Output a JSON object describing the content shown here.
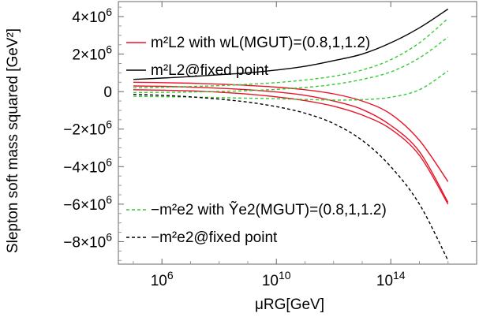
{
  "chart_data": {
    "type": "line",
    "xlabel": "μRG[GeV]",
    "ylabel": "Slepton soft mass squared [GeV²]",
    "x_scale": "log",
    "xlim": [
      30000,
      1e+17
    ],
    "ylim": [
      -9200000,
      4800000
    ],
    "grid": false,
    "legend_placement": "in-plot",
    "x_tick_labels": [
      "10^6",
      "10^10",
      "10^14"
    ],
    "x_tick_values": [
      1000000.0,
      10000000000.0,
      100000000000000.0
    ],
    "y_tick_labels": [
      "4×10^6",
      "2×10^6",
      "0",
      "−2×10^6",
      "−4×10^6",
      "−6×10^6",
      "−8×10^6"
    ],
    "y_tick_values": [
      4000000,
      2000000,
      0,
      -2000000,
      -4000000,
      -6000000,
      -8000000
    ],
    "legend": [
      {
        "label": "m²L2 with wL(MGUT)=(0.8,1,1.2)",
        "color": "#e8142a",
        "dashed": false
      },
      {
        "label": "m²L2@fixed point",
        "color": "#000000",
        "dashed": false
      },
      {
        "label": "−m²e2 with Ỹe2(MGUT)=(0.8,1,1.2)",
        "color": "#33cc33",
        "dashed": true
      },
      {
        "label": "−m²e2@fixed point",
        "color": "#000000",
        "dashed": true
      }
    ],
    "series": [
      {
        "color": "#000000",
        "dashed": false,
        "x": [
          100000.0,
          1000000.0,
          10000000.0,
          100000000.0,
          1000000000.0,
          10000000000.0,
          100000000000.0,
          1000000000000.0,
          10000000000000.0,
          100000000000000.0,
          1000000000000000.0,
          1e+16
        ],
        "y": [
          650000,
          720000,
          800000,
          900000,
          1000000,
          1150000,
          1350000,
          1650000,
          2000000,
          2600000,
          3400000,
          4400000
        ]
      },
      {
        "color": "#e8142a",
        "dashed": false,
        "x": [
          100000.0,
          1000000.0,
          10000000.0,
          100000000.0,
          1000000000.0,
          10000000000.0,
          100000000000.0,
          1000000000000.0,
          10000000000000.0,
          100000000000000.0,
          1000000000000000.0,
          1e+16
        ],
        "y": [
          500000,
          480000,
          450000,
          400000,
          330000,
          240000,
          100000,
          -120000,
          -500000,
          -1200000,
          -2600000,
          -4800000
        ]
      },
      {
        "color": "#e8142a",
        "dashed": false,
        "x": [
          100000.0,
          1000000.0,
          10000000.0,
          100000000.0,
          1000000000.0,
          10000000000.0,
          100000000000.0,
          1000000000000.0,
          10000000000000.0,
          100000000000000.0,
          1000000000000000.0,
          1e+16
        ],
        "y": [
          300000,
          280000,
          240000,
          180000,
          100000,
          -20000,
          -200000,
          -500000,
          -950000,
          -1800000,
          -3200000,
          -5900000
        ]
      },
      {
        "color": "#e8142a",
        "dashed": false,
        "x": [
          100000.0,
          1000000.0,
          10000000.0,
          100000000.0,
          1000000000.0,
          10000000000.0,
          100000000000.0,
          1000000000000.0,
          10000000000000.0,
          100000000000000.0,
          1000000000000000.0,
          1e+16
        ],
        "y": [
          100000,
          80000,
          40000,
          -30000,
          -130000,
          -280000,
          -480000,
          -780000,
          -1250000,
          -2000000,
          -3400000,
          -6000000
        ]
      },
      {
        "color": "#33cc33",
        "dashed": true,
        "x": [
          100000.0,
          1000000.0,
          10000000.0,
          100000000.0,
          1000000000.0,
          10000000000.0,
          100000000000.0,
          1000000000000.0,
          10000000000000.0,
          100000000000000.0,
          1000000000000000.0,
          1e+16
        ],
        "y": [
          200000,
          230000,
          270000,
          320000,
          390000,
          480000,
          620000,
          820000,
          1150000,
          1700000,
          2600000,
          3900000
        ]
      },
      {
        "color": "#33cc33",
        "dashed": true,
        "x": [
          100000.0,
          1000000.0,
          10000000.0,
          100000000.0,
          1000000000.0,
          10000000000.0,
          100000000000.0,
          1000000000000.0,
          10000000000000.0,
          100000000000000.0,
          1000000000000000.0,
          1e+16
        ],
        "y": [
          -50000,
          -40000,
          -20000,
          10000,
          50000,
          120000,
          220000,
          380000,
          650000,
          1050000,
          1800000,
          2900000
        ]
      },
      {
        "color": "#33cc33",
        "dashed": true,
        "x": [
          100000.0,
          1000000.0,
          10000000.0,
          100000000.0,
          1000000000.0,
          10000000000.0,
          100000000000.0,
          1000000000000.0,
          10000000000000.0,
          100000000000000.0,
          1000000000000000.0,
          1e+16
        ],
        "y": [
          -250000,
          -270000,
          -290000,
          -320000,
          -350000,
          -380000,
          -420000,
          -450000,
          -430000,
          -300000,
          100000,
          1100000
        ]
      },
      {
        "color": "#000000",
        "dashed": true,
        "x": [
          100000.0,
          1000000.0,
          10000000.0,
          100000000.0,
          1000000000.0,
          10000000000.0,
          100000000000.0,
          1000000000000.0,
          10000000000000.0,
          100000000000000.0,
          1000000000000000.0,
          1e+16
        ],
        "y": [
          -150000,
          -200000,
          -280000,
          -400000,
          -560000,
          -800000,
          -1150000,
          -1700000,
          -2600000,
          -4000000,
          -6000000,
          -9000000
        ]
      }
    ]
  }
}
